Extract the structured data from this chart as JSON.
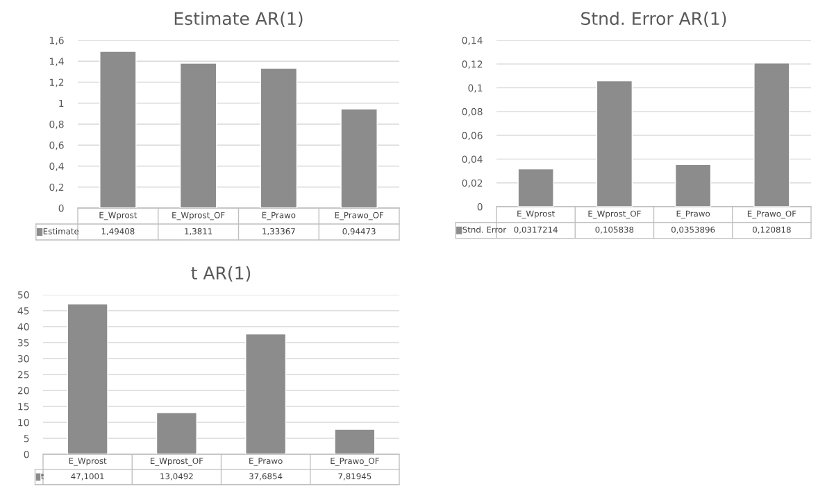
{
  "chart_data": [
    {
      "type": "bar",
      "title": "Estimate AR(1)",
      "categories": [
        "E_Wprost",
        "E_Wprost_OF",
        "E_Prawo",
        "E_Prawo_OF"
      ],
      "series": [
        {
          "name": "Estimate",
          "color": "#8c8c8c",
          "values": [
            1.49408,
            1.3811,
            1.33367,
            0.94473
          ],
          "value_labels": [
            "1,49408",
            "1,3811",
            "1,33367",
            "0,94473"
          ]
        }
      ],
      "ylim": [
        0,
        1.6
      ],
      "yticks": [
        0,
        {
          "value": 0.2,
          "label": "0,2"
        },
        {
          "value": 0.4,
          "label": "0,4"
        },
        {
          "value": 0.6,
          "label": "0,6"
        },
        {
          "value": 0.8,
          "label": "0,8"
        },
        1,
        {
          "value": 1.2,
          "label": "1,2"
        },
        {
          "value": 1.4,
          "label": "1,4"
        },
        {
          "value": 1.6,
          "label": "1,6"
        }
      ],
      "grid": "y",
      "legend": "bottom"
    },
    {
      "type": "bar",
      "title": "Stnd. Error AR(1)",
      "categories": [
        "E_Wprost",
        "E_Wprost_OF",
        "E_Prawo",
        "E_Prawo_OF"
      ],
      "series": [
        {
          "name": "Stnd. Error",
          "color": "#8c8c8c",
          "values": [
            0.0317214,
            0.105838,
            0.0353896,
            0.120818
          ],
          "value_labels": [
            "0,0317214",
            "0,105838",
            "0,0353896",
            "0,120818"
          ]
        }
      ],
      "ylim": [
        0,
        0.14
      ],
      "yticks": [
        0,
        {
          "value": 0.02,
          "label": "0,02"
        },
        {
          "value": 0.04,
          "label": "0,04"
        },
        {
          "value": 0.06,
          "label": "0,06"
        },
        {
          "value": 0.08,
          "label": "0,08"
        },
        {
          "value": 0.1,
          "label": "0,1"
        },
        {
          "value": 0.12,
          "label": "0,12"
        },
        {
          "value": 0.14,
          "label": "0,14"
        }
      ],
      "grid": "y",
      "legend": "bottom"
    },
    {
      "type": "bar",
      "title": "t AR(1)",
      "categories": [
        "E_Wprost",
        "E_Wprost_OF",
        "E_Prawo",
        "E_Prawo_OF"
      ],
      "series": [
        {
          "name": "t",
          "color": "#8c8c8c",
          "values": [
            47.1001,
            13.0492,
            37.6854,
            7.81945
          ],
          "value_labels": [
            "47,1001",
            "13,0492",
            "37,6854",
            "7,81945"
          ]
        }
      ],
      "ylim": [
        0,
        50
      ],
      "yticks": [
        0,
        5,
        10,
        15,
        20,
        25,
        30,
        35,
        40,
        45,
        50
      ],
      "grid": "y",
      "legend": "bottom"
    }
  ]
}
